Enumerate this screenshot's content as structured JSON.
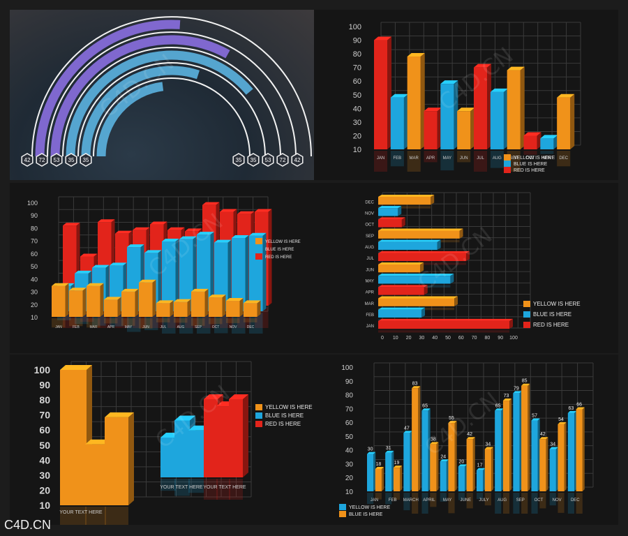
{
  "watermark": "C4D.CN",
  "footer_text": "C4D.CN",
  "colors": {
    "yellow": "#f0921a",
    "blue": "#1ea6dd",
    "red": "#e2241b",
    "purple": "#8a6fe0",
    "lightblue": "#5bb3e0"
  },
  "chart_data": [
    {
      "type": "radial-bar",
      "values_left": [
        "42",
        "72",
        "53",
        "35",
        "35"
      ],
      "values_right": [
        "35",
        "35",
        "53",
        "72",
        "42"
      ]
    },
    {
      "type": "bar",
      "categories": [
        "JAN",
        "FEB",
        "MAR",
        "APR",
        "MAY",
        "JUN",
        "JUL",
        "AUG",
        "SEP",
        "OCT",
        "NOV",
        "DEC"
      ],
      "values": [
        90,
        48,
        78,
        38,
        58,
        38,
        70,
        52,
        68,
        20,
        18,
        48
      ],
      "colors": [
        "red",
        "blue",
        "yellow",
        "red",
        "blue",
        "yellow",
        "red",
        "blue",
        "yellow",
        "red",
        "blue",
        "yellow"
      ],
      "yticks": [
        "10",
        "20",
        "30",
        "40",
        "50",
        "60",
        "70",
        "80",
        "90",
        "100"
      ],
      "legend": [
        "YELLOW IS HERE",
        "BLUE IS HERE",
        "RED IS HERE"
      ]
    },
    {
      "type": "bar",
      "categories": [
        "JAN",
        "FEB",
        "MAR",
        "APR",
        "MAY",
        "JUN",
        "JUL",
        "AUG",
        "SEP",
        "OCT",
        "NOV",
        "DEC"
      ],
      "series": [
        {
          "name": "YELLOW IS HERE",
          "values": [
            27,
            23,
            27,
            15,
            22,
            30,
            12,
            13,
            22,
            17,
            14,
            12
          ]
        },
        {
          "name": "BLUE IS HERE",
          "values": [
            22,
            33,
            38,
            40,
            56,
            51,
            61,
            63,
            67,
            60,
            64,
            66
          ]
        },
        {
          "name": "RED IS HERE",
          "values": [
            70,
            43,
            73,
            63,
            66,
            71,
            66,
            65,
            88,
            82,
            80,
            82
          ]
        }
      ],
      "yticks": [
        "10",
        "20",
        "30",
        "40",
        "50",
        "60",
        "70",
        "80",
        "90",
        "100"
      ],
      "legend": [
        "YELLOW IS HERE",
        "BLUE IS HERE",
        "RED IS HERE"
      ]
    },
    {
      "type": "horizontal-bar",
      "categories": [
        "DEC",
        "NOV",
        "OCT",
        "SEP",
        "AUG",
        "JUL",
        "JUN",
        "MAY",
        "APR",
        "MAR",
        "FEB",
        "JAN"
      ],
      "values": [
        40,
        15,
        18,
        62,
        45,
        67,
        32,
        55,
        35,
        58,
        33,
        100
      ],
      "colors": [
        "yellow",
        "blue",
        "red",
        "yellow",
        "blue",
        "red",
        "yellow",
        "blue",
        "red",
        "yellow",
        "blue",
        "red"
      ],
      "xticks": [
        "0",
        "10",
        "20",
        "30",
        "40",
        "50",
        "60",
        "70",
        "80",
        "90",
        "100"
      ],
      "legend": [
        "YELLOW IS HERE",
        "BLUE IS HERE",
        "RED IS HERE"
      ]
    },
    {
      "type": "bar",
      "categories": [
        "YOUR TEXT HERE",
        "YOUR TEXT HERE",
        "YOUR TEXT HERE"
      ],
      "groups": [
        {
          "color": "yellow",
          "values": [
            100,
            45,
            65
          ]
        },
        {
          "color": "blue",
          "values": [
            28,
            40,
            33
          ]
        },
        {
          "color": "red",
          "values": [
            55,
            50,
            55
          ]
        }
      ],
      "yticks": [
        "10",
        "20",
        "30",
        "40",
        "50",
        "60",
        "70",
        "80",
        "90",
        "100"
      ],
      "legend": [
        "YELLOW IS HERE",
        "BLUE IS HERE",
        "RED IS HERE"
      ]
    },
    {
      "type": "bar",
      "categories": [
        "JAN",
        "FEB",
        "MARCH",
        "APRIL",
        "MAY",
        "JUNE",
        "JULY",
        "AUG",
        "SEP",
        "OCT",
        "NOV",
        "DEC"
      ],
      "series": [
        {
          "name": "YELLOW IS HERE",
          "values": [
            30,
            31,
            47,
            65,
            24,
            20,
            17,
            65,
            79,
            57,
            34,
            63
          ]
        },
        {
          "name": "BLUE IS HERE",
          "values": [
            18,
            19,
            83,
            38,
            55,
            42,
            34,
            73,
            85,
            42,
            54,
            66
          ]
        }
      ],
      "yticks": [
        "10",
        "20",
        "30",
        "40",
        "50",
        "60",
        "70",
        "80",
        "90",
        "100"
      ],
      "legend": [
        "YELLOW IS HERE",
        "BLUE IS HERE"
      ]
    }
  ]
}
